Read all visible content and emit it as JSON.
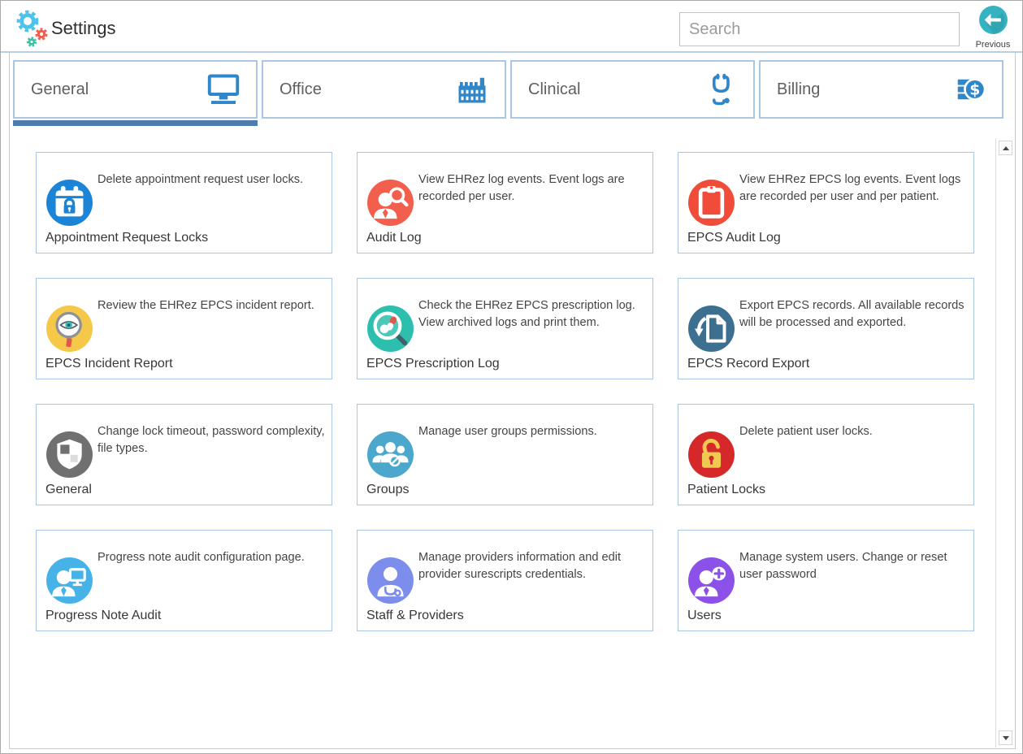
{
  "header": {
    "app_title": "Settings",
    "search_placeholder": "Search",
    "previous_label": "Previous"
  },
  "tabs": [
    {
      "label": "General",
      "icon": "monitor-icon",
      "active": true
    },
    {
      "label": "Office",
      "icon": "factory-icon",
      "active": false
    },
    {
      "label": "Clinical",
      "icon": "stethoscope-icon",
      "active": false
    },
    {
      "label": "Billing",
      "icon": "invoice-dollar-icon",
      "active": false
    }
  ],
  "cards": [
    {
      "title": "Appointment Request Locks",
      "description": "Delete appointment request user locks.",
      "icon": "calendar-lock-icon",
      "icon_color": "#1b84d6"
    },
    {
      "title": "Audit Log",
      "description": "View EHRez log events. Event logs are recorded per user.",
      "icon": "user-search-icon",
      "icon_color": "#f2604d"
    },
    {
      "title": "EPCS Audit Log",
      "description": "View EHRez EPCS log events. Event logs are recorded per user and per patient.",
      "icon": "clipboard-icon",
      "icon_color": "#f04c39"
    },
    {
      "title": "EPCS Incident Report",
      "description": "Review the EHRez EPCS incident report.",
      "icon": "magnifier-eye-icon",
      "icon_color": "#f6c84a"
    },
    {
      "title": "EPCS Prescription Log",
      "description": "Check the EHRez EPCS prescription log. View archived logs and print them.",
      "icon": "magnifier-pills-icon",
      "icon_color": "#2dbfae"
    },
    {
      "title": "EPCS Record Export",
      "description": "Export EPCS records. All available records will be processed and exported.",
      "icon": "document-export-icon",
      "icon_color": "#3d7090"
    },
    {
      "title": "General",
      "description": "Change lock timeout, password complexity, file types.",
      "icon": "shield-icon",
      "icon_color": "#707070"
    },
    {
      "title": "Groups",
      "description": "Manage user groups permissions.",
      "icon": "user-group-icon",
      "icon_color": "#4ba7cb"
    },
    {
      "title": "Patient Locks",
      "description": "Delete patient user locks.",
      "icon": "padlock-icon",
      "icon_color": "#d4282b"
    },
    {
      "title": "Progress Note Audit",
      "description": "Progress note audit configuration page.",
      "icon": "user-monitor-icon",
      "icon_color": "#47b2e8"
    },
    {
      "title": "Staff & Providers",
      "description": "Manage providers information and edit provider surescripts credentials.",
      "icon": "doctor-icon",
      "icon_color": "#7d8deb"
    },
    {
      "title": "Users",
      "description": "Manage system users. Change or reset user password",
      "icon": "user-add-icon",
      "icon_color": "#8b51e8"
    }
  ],
  "colors": {
    "tab_icon": "#2f86c8",
    "tab_border": "#a9c7e4",
    "active_tab_underline": "#4d7cae",
    "header_separator": "#b9cfe0",
    "card_border": "#a9c7e4",
    "previous_button": "#35b3c1",
    "logo_gear_large": "#4cc3ea",
    "logo_gear_coral": "#f0604d",
    "logo_gear_teal": "#38c2a2"
  }
}
